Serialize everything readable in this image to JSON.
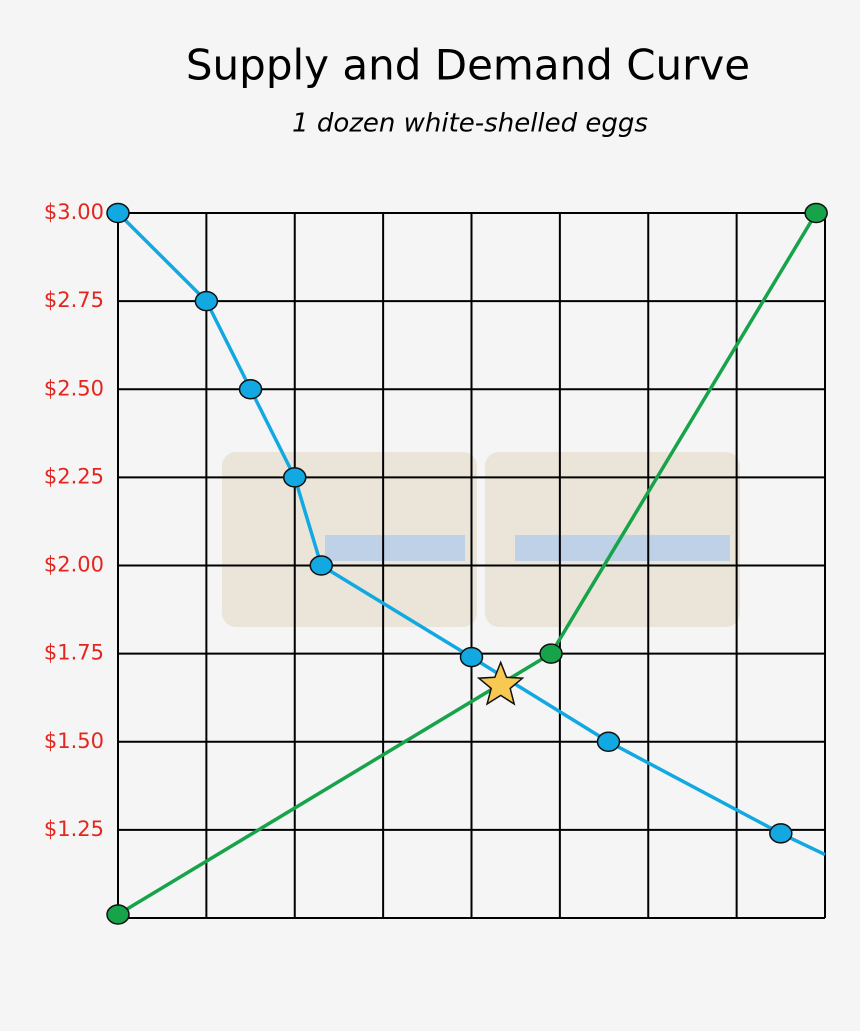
{
  "chart_data": {
    "type": "line",
    "title": "Supply and Demand Curve",
    "subtitle": "1 dozen white-shelled eggs",
    "xlim": [
      0,
      8
    ],
    "xticks": [
      0,
      1,
      2,
      3,
      4,
      5,
      6,
      7,
      8
    ],
    "ylim": [
      1.0,
      3.0
    ],
    "yticks": [
      {
        "value": 1.0,
        "label": ""
      },
      {
        "value": 1.25,
        "label": "$1.25"
      },
      {
        "value": 1.5,
        "label": "$1.50"
      },
      {
        "value": 1.75,
        "label": "$1.75"
      },
      {
        "value": 2.0,
        "label": "$2.00"
      },
      {
        "value": 2.25,
        "label": "$2.25"
      },
      {
        "value": 2.5,
        "label": "$2.50"
      },
      {
        "value": 2.75,
        "label": "$2.75"
      },
      {
        "value": 3.0,
        "label": "$3.00"
      }
    ],
    "grid": true,
    "series": [
      {
        "color": "#12a8e2",
        "x": [
          0,
          1,
          1.5,
          2,
          2.3,
          4.0,
          5.55,
          7.5,
          8
        ],
        "values": [
          3.0,
          2.75,
          2.5,
          2.25,
          2.0,
          1.74,
          1.5,
          1.24,
          1.18
        ],
        "show_markers": [
          true,
          true,
          true,
          true,
          true,
          true,
          true,
          true,
          false
        ]
      },
      {
        "color": "#16a34a",
        "x": [
          0,
          4.9,
          7.9
        ],
        "values": [
          1.01,
          1.75,
          3.0
        ],
        "show_markers": [
          true,
          true,
          true
        ]
      }
    ],
    "equilibrium": {
      "x": 4.33,
      "y": 1.66,
      "color": "#f7c852"
    }
  }
}
